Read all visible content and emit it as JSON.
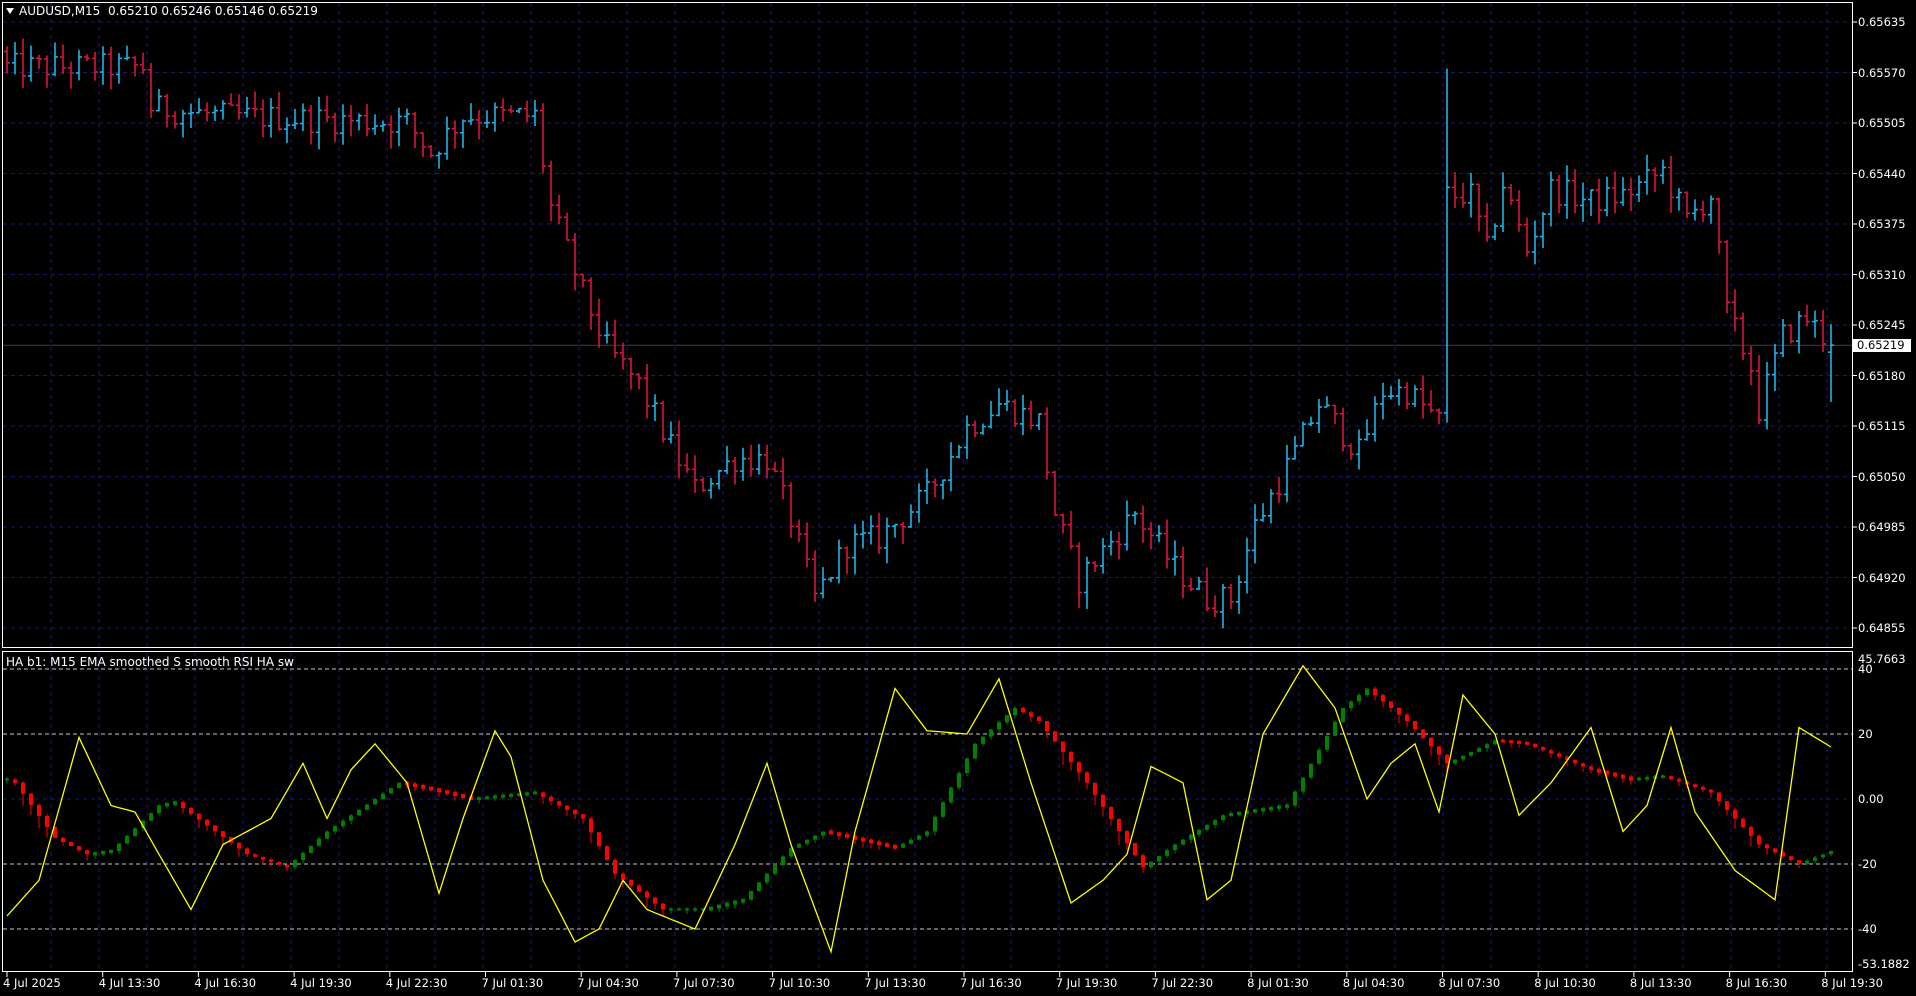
{
  "header": {
    "symbol": "AUDUSD,M15",
    "ohlc": "0.65210 0.65246 0.65146 0.65219",
    "menu_icon": "triangle-down-icon"
  },
  "price_axis": {
    "labels": [
      "0.65635",
      "0.65570",
      "0.65505",
      "0.65440",
      "0.65375",
      "0.65310",
      "0.65245",
      "0.65180",
      "0.65115",
      "0.65050",
      "0.64985",
      "0.64920",
      "0.64855"
    ],
    "current": "0.65219"
  },
  "indicator": {
    "title": "HA b1: M15 EMA smoothed S smooth RSI HA sw",
    "max_label": "45.7663",
    "min_label": "-53.1882",
    "levels": [
      "40",
      "20",
      "0.00",
      "-20",
      "-40"
    ]
  },
  "time_axis": {
    "labels": [
      "4 Jul 2025",
      "4 Jul 13:30",
      "4 Jul 16:30",
      "4 Jul 19:30",
      "4 Jul 22:30",
      "7 Jul 01:30",
      "7 Jul 04:30",
      "7 Jul 07:30",
      "7 Jul 10:30",
      "7 Jul 13:30",
      "7 Jul 16:30",
      "7 Jul 19:30",
      "7 Jul 22:30",
      "8 Jul 01:30",
      "8 Jul 04:30",
      "8 Jul 07:30",
      "8 Jul 10:30",
      "8 Jul 13:30",
      "8 Jul 16:30",
      "8 Jul 19:30"
    ]
  },
  "colors": {
    "bull_bar": "#1cb4e8",
    "bear_bar": "#dc143c",
    "ha_up": "#008000",
    "ha_down": "#ff0000",
    "line": "#ffff00",
    "grid": "#1c1c6e"
  },
  "chart_data": [
    {
      "type": "ohlc",
      "title": "AUDUSD,M15",
      "timeframe_minutes": 15,
      "bar_count": 229,
      "ylim": [
        0.6483,
        0.6565
      ],
      "grid": true,
      "close_path": [
        [
          0,
          0.65577
        ],
        [
          17,
          0.65577
        ],
        [
          18,
          0.65525
        ],
        [
          27,
          0.65514
        ],
        [
          50,
          0.65506
        ],
        [
          53,
          0.65467
        ],
        [
          57,
          0.65514
        ],
        [
          66,
          0.65514
        ],
        [
          68,
          0.65396
        ],
        [
          72,
          0.65286
        ],
        [
          75,
          0.65215
        ],
        [
          79,
          0.65168
        ],
        [
          83,
          0.65089
        ],
        [
          86,
          0.65034
        ],
        [
          91,
          0.65073
        ],
        [
          95,
          0.65073
        ],
        [
          98,
          0.64995
        ],
        [
          101,
          0.64893
        ],
        [
          105,
          0.64963
        ],
        [
          109,
          0.64971
        ],
        [
          115,
          0.65026
        ],
        [
          120,
          0.65113
        ],
        [
          124,
          0.65144
        ],
        [
          129,
          0.65121
        ],
        [
          131,
          0.65003
        ],
        [
          134,
          0.64916
        ],
        [
          137,
          0.64955
        ],
        [
          141,
          0.65003
        ],
        [
          146,
          0.64932
        ],
        [
          150,
          0.64893
        ],
        [
          153,
          0.64893
        ],
        [
          156,
          0.64987
        ],
        [
          161,
          0.65081
        ],
        [
          164,
          0.65144
        ],
        [
          169,
          0.65081
        ],
        [
          172,
          0.6516
        ],
        [
          175,
          0.6516
        ],
        [
          179,
          0.65121
        ],
        [
          180,
          0.65412
        ],
        [
          183,
          0.65412
        ],
        [
          185,
          0.65341
        ],
        [
          187,
          0.65427
        ],
        [
          190,
          0.65341
        ],
        [
          193,
          0.6542
        ],
        [
          198,
          0.65404
        ],
        [
          202,
          0.65412
        ],
        [
          207,
          0.65443
        ],
        [
          210,
          0.6538
        ],
        [
          213,
          0.65412
        ],
        [
          215,
          0.65262
        ],
        [
          218,
          0.65191
        ],
        [
          219,
          0.65136
        ],
        [
          222,
          0.65231
        ],
        [
          225,
          0.65254
        ],
        [
          228,
          0.65219
        ]
      ],
      "spike": {
        "bar": 180,
        "high": 0.65575
      },
      "last_bar": {
        "open": 0.6521,
        "high": 0.65246,
        "low": 0.65146,
        "close": 0.65219
      }
    },
    {
      "type": "line+ha-histogram",
      "title": "HA b1: M15 EMA smoothed S smooth RSI HA sw",
      "ylim": [
        -53.1882,
        45.7663
      ],
      "levels": [
        40,
        20,
        0,
        -20,
        -40
      ],
      "line_series": [
        [
          0,
          -36
        ],
        [
          4,
          -25
        ],
        [
          9,
          19
        ],
        [
          13,
          -2
        ],
        [
          16,
          -4
        ],
        [
          19,
          -17
        ],
        [
          23,
          -34
        ],
        [
          27,
          -14
        ],
        [
          30,
          -10
        ],
        [
          33,
          -6
        ],
        [
          37,
          11
        ],
        [
          40,
          -6
        ],
        [
          43,
          9
        ],
        [
          46,
          17
        ],
        [
          50,
          5
        ],
        [
          54,
          -29
        ],
        [
          57,
          -6
        ],
        [
          61,
          21
        ],
        [
          63,
          13
        ],
        [
          67,
          -25
        ],
        [
          71,
          -44
        ],
        [
          74,
          -40
        ],
        [
          77,
          -25
        ],
        [
          80,
          -34
        ],
        [
          86,
          -40
        ],
        [
          91,
          -14
        ],
        [
          95,
          11
        ],
        [
          98,
          -14
        ],
        [
          103,
          -47
        ],
        [
          106,
          -10
        ],
        [
          111,
          34
        ],
        [
          115,
          21
        ],
        [
          120,
          20
        ],
        [
          124,
          37
        ],
        [
          128,
          5
        ],
        [
          133,
          -32
        ],
        [
          137,
          -25
        ],
        [
          140,
          -17
        ],
        [
          143,
          10
        ],
        [
          147,
          5
        ],
        [
          150,
          -31
        ],
        [
          153,
          -25
        ],
        [
          157,
          20
        ],
        [
          162,
          41
        ],
        [
          166,
          28
        ],
        [
          170,
          0
        ],
        [
          173,
          11
        ],
        [
          176,
          17
        ],
        [
          179,
          -4
        ],
        [
          182,
          32
        ],
        [
          186,
          20
        ],
        [
          189,
          -5
        ],
        [
          193,
          5
        ],
        [
          198,
          22
        ],
        [
          202,
          -10
        ],
        [
          205,
          -2
        ],
        [
          208,
          22
        ],
        [
          211,
          -4
        ],
        [
          216,
          -22
        ],
        [
          221,
          -31
        ],
        [
          224,
          22
        ],
        [
          228,
          16
        ]
      ],
      "ha_series": [
        [
          0,
          6
        ],
        [
          1,
          5
        ],
        [
          6,
          -12
        ],
        [
          10,
          -17
        ],
        [
          13,
          -16
        ],
        [
          19,
          -2
        ],
        [
          21,
          -1
        ],
        [
          30,
          -17
        ],
        [
          35,
          -21
        ],
        [
          40,
          -10
        ],
        [
          49,
          5
        ],
        [
          53,
          3
        ],
        [
          58,
          0
        ],
        [
          62,
          1
        ],
        [
          66,
          2
        ],
        [
          72,
          -6
        ],
        [
          76,
          -23
        ],
        [
          82,
          -34
        ],
        [
          87,
          -34
        ],
        [
          92,
          -31
        ],
        [
          98,
          -15
        ],
        [
          102,
          -10
        ],
        [
          111,
          -15
        ],
        [
          115,
          -10
        ],
        [
          121,
          17
        ],
        [
          126,
          28
        ],
        [
          129,
          24
        ],
        [
          135,
          5
        ],
        [
          142,
          -21
        ],
        [
          146,
          -14
        ],
        [
          152,
          -5
        ],
        [
          160,
          -2
        ],
        [
          167,
          28
        ],
        [
          170,
          34
        ],
        [
          175,
          24
        ],
        [
          180,
          11
        ],
        [
          186,
          18
        ],
        [
          190,
          17
        ],
        [
          198,
          9
        ],
        [
          203,
          6
        ],
        [
          207,
          7
        ],
        [
          213,
          2
        ],
        [
          219,
          -14
        ],
        [
          224,
          -20
        ],
        [
          228,
          -16
        ]
      ]
    }
  ]
}
